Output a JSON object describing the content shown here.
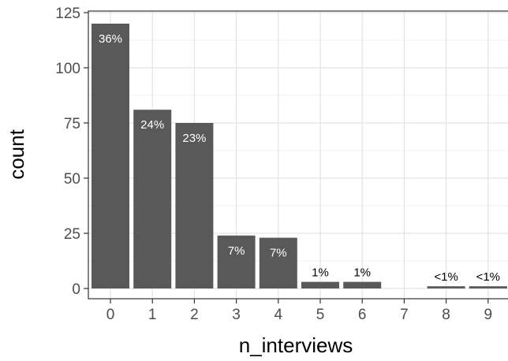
{
  "chart_data": {
    "type": "bar",
    "title": "",
    "xlabel": "n_interviews",
    "ylabel": "count",
    "categories": [
      "0",
      "1",
      "2",
      "3",
      "4",
      "5",
      "6",
      "7",
      "8",
      "9"
    ],
    "values": [
      120,
      81,
      75,
      24,
      23,
      3,
      3,
      0,
      1,
      1
    ],
    "data_labels": [
      "36%",
      "24%",
      "23%",
      "7%",
      "7%",
      "1%",
      "1%",
      "",
      "<1%",
      "<1%"
    ],
    "ylim": [
      0,
      125
    ],
    "yticks": [
      0,
      25,
      50,
      75,
      100,
      125
    ],
    "grid": true,
    "theme": "ggplot-bw",
    "bar_color": "#595959",
    "label_inside_color": "#ffffff",
    "label_outside_color": "#000000"
  }
}
